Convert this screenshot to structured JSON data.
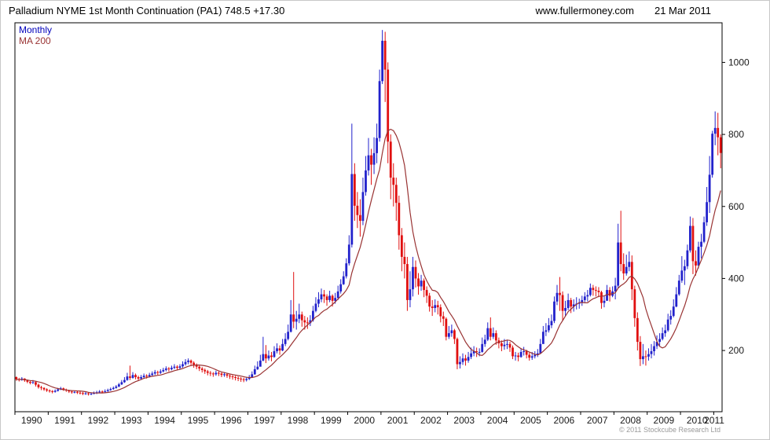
{
  "header": {
    "title": "Palladium NYME 1st Month Continuation (PA1) 748.5 +17.30",
    "website": "www.fullermoney.com",
    "date": "21 Mar 2011"
  },
  "legend": {
    "timeframe_label": "Monthly",
    "ma_label": "MA 200"
  },
  "footer": {
    "copyright": "© 2011 Stockcube Research Ltd"
  },
  "colors": {
    "up_candle": "#2222cc",
    "down_candle": "#e01010",
    "ma_line": "#993333",
    "legend_timeframe": "#0000bb",
    "axis_line": "#000000",
    "axis_label": "#1a1a1a",
    "copyright": "#9a9a9a",
    "background": "#ffffff"
  },
  "chart_data": {
    "type": "candlestick",
    "title": "Palladium NYME 1st Month Continuation (PA1)",
    "instrument": "PA1",
    "timeframe": "Monthly",
    "last_price": 748.5,
    "change": "+17.30",
    "legend": [
      "Monthly",
      "MA 200"
    ],
    "grid": false,
    "y_axis_side": "right",
    "ylim": [
      30,
      1110
    ],
    "y_ticks": [
      200,
      400,
      600,
      800,
      1000
    ],
    "year_labels": [
      1990,
      1991,
      1992,
      1993,
      1994,
      1995,
      1996,
      1997,
      1998,
      1999,
      2000,
      2001,
      2002,
      2003,
      2004,
      2005,
      2006,
      2007,
      2008,
      2009,
      2010,
      2011
    ],
    "x_start": {
      "year": 1990,
      "month": 1
    },
    "x_end": {
      "year": 2011,
      "month": 3
    },
    "ma_period_months": 10,
    "first_open": 126,
    "candles_hlc": [
      [
        128,
        116,
        120
      ],
      [
        124,
        114,
        118
      ],
      [
        126,
        116,
        122
      ],
      [
        123,
        113,
        117
      ],
      [
        119,
        109,
        113
      ],
      [
        116,
        106,
        110
      ],
      [
        118,
        107,
        112
      ],
      [
        114,
        100,
        105
      ],
      [
        108,
        94,
        98
      ],
      [
        102,
        90,
        96
      ],
      [
        98,
        88,
        92
      ],
      [
        95,
        85,
        89
      ],
      [
        92,
        83,
        87
      ],
      [
        90,
        81,
        85
      ],
      [
        92,
        83,
        88
      ],
      [
        96,
        86,
        92
      ],
      [
        99,
        90,
        95
      ],
      [
        97,
        88,
        91
      ],
      [
        94,
        85,
        89
      ],
      [
        91,
        82,
        86
      ],
      [
        89,
        80,
        84
      ],
      [
        89,
        81,
        85
      ],
      [
        88,
        79,
        83
      ],
      [
        87,
        78,
        82
      ],
      [
        85,
        76,
        80
      ],
      [
        85,
        77,
        81
      ],
      [
        84,
        75,
        79
      ],
      [
        84,
        76,
        80
      ],
      [
        86,
        78,
        82
      ],
      [
        88,
        79,
        84
      ],
      [
        90,
        82,
        86
      ],
      [
        89,
        81,
        85
      ],
      [
        92,
        83,
        87
      ],
      [
        94,
        85,
        90
      ],
      [
        97,
        88,
        93
      ],
      [
        100,
        91,
        96
      ],
      [
        104,
        94,
        100
      ],
      [
        110,
        98,
        106
      ],
      [
        118,
        104,
        112
      ],
      [
        126,
        110,
        118
      ],
      [
        138,
        116,
        128
      ],
      [
        158,
        118,
        124
      ],
      [
        140,
        122,
        132
      ],
      [
        136,
        120,
        126
      ],
      [
        130,
        116,
        122
      ],
      [
        132,
        118,
        126
      ],
      [
        136,
        122,
        130
      ],
      [
        134,
        122,
        128
      ],
      [
        138,
        125,
        132
      ],
      [
        142,
        128,
        136
      ],
      [
        146,
        132,
        140
      ],
      [
        144,
        132,
        138
      ],
      [
        148,
        135,
        142
      ],
      [
        152,
        139,
        146
      ],
      [
        156,
        142,
        150
      ],
      [
        154,
        142,
        148
      ],
      [
        158,
        145,
        152
      ],
      [
        162,
        148,
        155
      ],
      [
        159,
        146,
        152
      ],
      [
        162,
        149,
        156
      ],
      [
        170,
        152,
        162
      ],
      [
        176,
        158,
        168
      ],
      [
        178,
        162,
        172
      ],
      [
        175,
        158,
        166
      ],
      [
        170,
        152,
        160
      ],
      [
        164,
        148,
        155
      ],
      [
        158,
        143,
        150
      ],
      [
        154,
        139,
        146
      ],
      [
        150,
        135,
        142
      ],
      [
        146,
        131,
        138
      ],
      [
        143,
        129,
        136
      ],
      [
        140,
        127,
        134
      ],
      [
        144,
        130,
        138
      ],
      [
        142,
        129,
        136
      ],
      [
        139,
        126,
        132
      ],
      [
        140,
        127,
        134
      ],
      [
        137,
        124,
        130
      ],
      [
        134,
        121,
        128
      ],
      [
        132,
        119,
        126
      ],
      [
        130,
        117,
        124
      ],
      [
        128,
        115,
        122
      ],
      [
        126,
        113,
        120
      ],
      [
        124,
        112,
        118
      ],
      [
        127,
        114,
        121
      ],
      [
        132,
        118,
        126
      ],
      [
        142,
        124,
        134
      ],
      [
        158,
        132,
        148
      ],
      [
        170,
        146,
        155
      ],
      [
        188,
        158,
        172
      ],
      [
        238,
        170,
        190
      ],
      [
        215,
        165,
        178
      ],
      [
        200,
        172,
        186
      ],
      [
        196,
        170,
        182
      ],
      [
        212,
        180,
        198
      ],
      [
        220,
        192,
        206
      ],
      [
        214,
        188,
        200
      ],
      [
        232,
        198,
        218
      ],
      [
        248,
        212,
        232
      ],
      [
        272,
        228,
        252
      ],
      [
        340,
        250,
        300
      ],
      [
        418,
        262,
        280
      ],
      [
        310,
        258,
        288
      ],
      [
        330,
        276,
        300
      ],
      [
        308,
        266,
        284
      ],
      [
        296,
        258,
        278
      ],
      [
        292,
        260,
        276
      ],
      [
        298,
        268,
        284
      ],
      [
        324,
        280,
        310
      ],
      [
        348,
        306,
        330
      ],
      [
        362,
        320,
        342
      ],
      [
        372,
        334,
        356
      ],
      [
        368,
        332,
        350
      ],
      [
        356,
        324,
        340
      ],
      [
        366,
        334,
        352
      ],
      [
        356,
        322,
        338
      ],
      [
        360,
        330,
        346
      ],
      [
        380,
        340,
        364
      ],
      [
        398,
        358,
        384
      ],
      [
        420,
        382,
        406
      ],
      [
        456,
        400,
        442
      ],
      [
        520,
        436,
        494
      ],
      [
        830,
        486,
        690
      ],
      [
        720,
        560,
        602
      ],
      [
        640,
        540,
        576
      ],
      [
        620,
        516,
        560
      ],
      [
        680,
        548,
        640
      ],
      [
        740,
        630,
        700
      ],
      [
        790,
        686,
        742
      ],
      [
        760,
        660,
        716
      ],
      [
        792,
        690,
        748
      ],
      [
        830,
        720,
        790
      ],
      [
        980,
        780,
        948
      ],
      [
        1090,
        940,
        1060
      ],
      [
        1085,
        890,
        980
      ],
      [
        1000,
        720,
        780
      ],
      [
        800,
        620,
        680
      ],
      [
        720,
        600,
        660
      ],
      [
        680,
        560,
        610
      ],
      [
        630,
        480,
        520
      ],
      [
        540,
        420,
        460
      ],
      [
        500,
        400,
        440
      ],
      [
        460,
        310,
        340
      ],
      [
        420,
        320,
        370
      ],
      [
        460,
        350,
        432
      ],
      [
        450,
        375,
        400
      ],
      [
        415,
        355,
        378
      ],
      [
        410,
        366,
        394
      ],
      [
        400,
        348,
        368
      ],
      [
        378,
        332,
        352
      ],
      [
        360,
        308,
        322
      ],
      [
        340,
        296,
        318
      ],
      [
        342,
        306,
        326
      ],
      [
        338,
        300,
        320
      ],
      [
        328,
        278,
        295
      ],
      [
        308,
        268,
        288
      ],
      [
        292,
        228,
        238
      ],
      [
        268,
        232,
        248
      ],
      [
        272,
        238,
        256
      ],
      [
        260,
        218,
        232
      ],
      [
        236,
        148,
        162
      ],
      [
        184,
        150,
        168
      ],
      [
        192,
        160,
        178
      ],
      [
        188,
        158,
        172
      ],
      [
        196,
        166,
        182
      ],
      [
        208,
        176,
        192
      ],
      [
        212,
        184,
        198
      ],
      [
        208,
        182,
        196
      ],
      [
        206,
        184,
        196
      ],
      [
        236,
        194,
        218
      ],
      [
        244,
        210,
        230
      ],
      [
        278,
        226,
        262
      ],
      [
        292,
        228,
        238
      ],
      [
        264,
        232,
        248
      ],
      [
        256,
        216,
        228
      ],
      [
        236,
        206,
        220
      ],
      [
        228,
        198,
        212
      ],
      [
        232,
        202,
        216
      ],
      [
        230,
        204,
        218
      ],
      [
        224,
        196,
        208
      ],
      [
        214,
        176,
        184
      ],
      [
        196,
        172,
        186
      ],
      [
        194,
        170,
        182
      ],
      [
        206,
        180,
        196
      ],
      [
        210,
        186,
        198
      ],
      [
        202,
        178,
        188
      ],
      [
        194,
        172,
        180
      ],
      [
        196,
        174,
        184
      ],
      [
        198,
        178,
        188
      ],
      [
        204,
        182,
        192
      ],
      [
        232,
        196,
        218
      ],
      [
        268,
        228,
        252
      ],
      [
        276,
        240,
        256
      ],
      [
        290,
        250,
        270
      ],
      [
        300,
        262,
        282
      ],
      [
        350,
        276,
        336
      ],
      [
        382,
        326,
        360
      ],
      [
        404,
        310,
        354
      ],
      [
        364,
        282,
        310
      ],
      [
        338,
        296,
        318
      ],
      [
        358,
        312,
        340
      ],
      [
        346,
        304,
        322
      ],
      [
        342,
        308,
        328
      ],
      [
        348,
        314,
        330
      ],
      [
        344,
        316,
        332
      ],
      [
        352,
        324,
        340
      ],
      [
        362,
        334,
        350
      ],
      [
        368,
        336,
        354
      ],
      [
        386,
        350,
        374
      ],
      [
        382,
        352,
        368
      ],
      [
        378,
        350,
        366
      ],
      [
        376,
        348,
        362
      ],
      [
        366,
        316,
        332
      ],
      [
        352,
        320,
        338
      ],
      [
        382,
        344,
        368
      ],
      [
        376,
        336,
        352
      ],
      [
        378,
        348,
        364
      ],
      [
        402,
        342,
        380
      ],
      [
        552,
        374,
        500
      ],
      [
        588,
        420,
        440
      ],
      [
        470,
        396,
        414
      ],
      [
        466,
        408,
        432
      ],
      [
        475,
        420,
        446
      ],
      [
        464,
        340,
        370
      ],
      [
        380,
        266,
        290
      ],
      [
        306,
        200,
        224
      ],
      [
        240,
        157,
        176
      ],
      [
        218,
        162,
        184
      ],
      [
        200,
        158,
        183
      ],
      [
        206,
        172,
        190
      ],
      [
        218,
        178,
        198
      ],
      [
        226,
        186,
        212
      ],
      [
        242,
        204,
        224
      ],
      [
        248,
        212,
        232
      ],
      [
        264,
        228,
        248
      ],
      [
        272,
        238,
        256
      ],
      [
        302,
        252,
        286
      ],
      [
        312,
        272,
        296
      ],
      [
        342,
        292,
        322
      ],
      [
        376,
        320,
        356
      ],
      [
        410,
        352,
        394
      ],
      [
        462,
        388,
        422
      ],
      [
        452,
        382,
        434
      ],
      [
        494,
        426,
        478
      ],
      [
        572,
        472,
        546
      ],
      [
        568,
        412,
        448
      ],
      [
        478,
        408,
        436
      ],
      [
        502,
        428,
        488
      ],
      [
        524,
        456,
        502
      ],
      [
        572,
        498,
        556
      ],
      [
        654,
        546,
        612
      ],
      [
        740,
        582,
        688
      ],
      [
        810,
        680,
        802
      ],
      [
        864,
        770,
        818
      ],
      [
        860,
        742,
        792
      ],
      [
        800,
        706,
        748.5
      ]
    ]
  }
}
